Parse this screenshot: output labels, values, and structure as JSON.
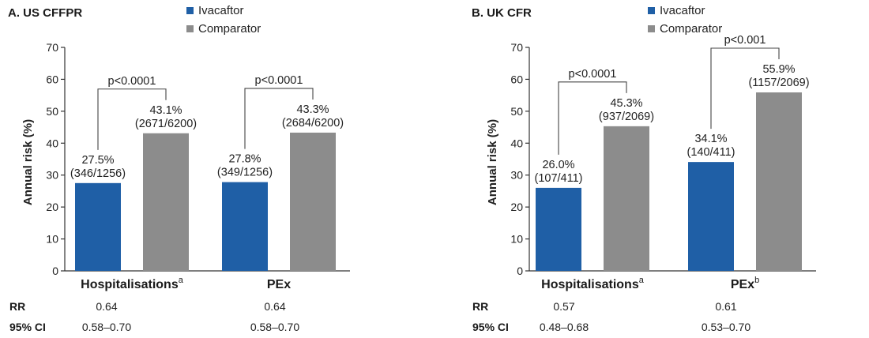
{
  "chart_data": [
    {
      "type": "bar",
      "title": "A. US CFFPR",
      "ylabel": "Annual risk (%)",
      "ylim": [
        0,
        70
      ],
      "yticks": [
        0,
        10,
        20,
        30,
        40,
        50,
        60,
        70
      ],
      "legend": "top-center",
      "categories": [
        {
          "label": "Hospitalisations",
          "sup": "a"
        },
        {
          "label": "PEx",
          "sup": ""
        }
      ],
      "series": [
        {
          "name": "Ivacaftor",
          "color": "#1f5fa6",
          "values": [
            27.5,
            27.8
          ],
          "labels": [
            "27.5%",
            "27.8%"
          ],
          "counts": [
            "(346/1256)",
            "(349/1256)"
          ]
        },
        {
          "name": "Comparator",
          "color": "#8c8c8c",
          "values": [
            43.1,
            43.3
          ],
          "labels": [
            "43.1%",
            "43.3%"
          ],
          "counts": [
            "(2671/6200)",
            "(2684/6200)"
          ]
        }
      ],
      "significance": [
        "p<0.0001",
        "p<0.0001"
      ],
      "rr_label": "RR",
      "rr": [
        "0.64",
        "0.64"
      ],
      "ci_label": "95% CI",
      "ci": [
        "0.58–0.70",
        "0.58–0.70"
      ]
    },
    {
      "type": "bar",
      "title": "B. UK CFR",
      "ylabel": "Annual risk (%)",
      "ylim": [
        0,
        70
      ],
      "yticks": [
        0,
        10,
        20,
        30,
        40,
        50,
        60,
        70
      ],
      "legend": "top-center",
      "categories": [
        {
          "label": "Hospitalisations",
          "sup": "a"
        },
        {
          "label": "PEx",
          "sup": "b"
        }
      ],
      "series": [
        {
          "name": "Ivacaftor",
          "color": "#1f5fa6",
          "values": [
            26.0,
            34.1
          ],
          "labels": [
            "26.0%",
            "34.1%"
          ],
          "counts": [
            "(107/411)",
            "(140/411)"
          ]
        },
        {
          "name": "Comparator",
          "color": "#8c8c8c",
          "values": [
            45.3,
            55.9
          ],
          "labels": [
            "45.3%",
            "55.9%"
          ],
          "counts": [
            "(937/2069)",
            "(1157/2069)"
          ]
        }
      ],
      "significance": [
        "p<0.0001",
        "p<0.001"
      ],
      "rr_label": "RR",
      "rr": [
        "0.57",
        "0.61"
      ],
      "ci_label": "95% CI",
      "ci": [
        "0.48–0.68",
        "0.53–0.70"
      ]
    }
  ]
}
